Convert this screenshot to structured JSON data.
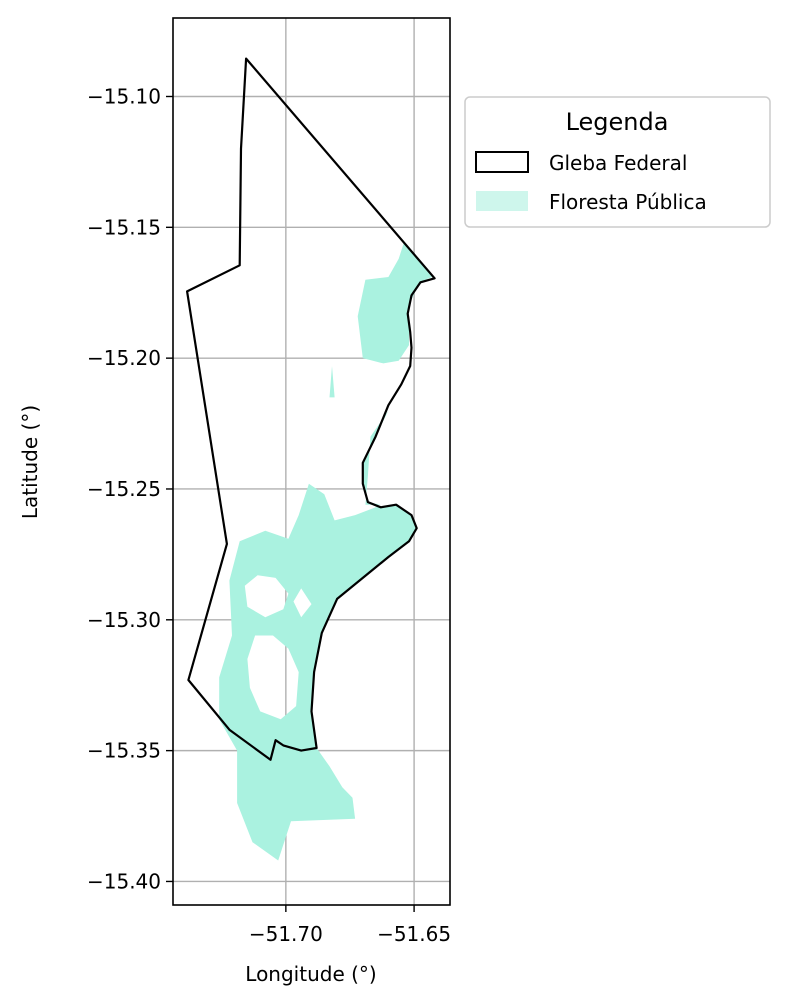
{
  "chart_data": {
    "type": "map",
    "xlabel": "Longitude (°)",
    "ylabel": "Latitude (°)",
    "xlim": [
      -51.744,
      -51.636
    ],
    "ylim": [
      -15.409,
      -15.07
    ],
    "x_ticks": [
      -51.7,
      -51.65
    ],
    "x_tick_labels": [
      "−51.70",
      "−51.65"
    ],
    "y_ticks": [
      -15.1,
      -15.15,
      -15.2,
      -15.25,
      -15.3,
      -15.35,
      -15.4
    ],
    "y_tick_labels": [
      "−15.10",
      "−15.15",
      "−15.20",
      "−15.25",
      "−15.30",
      "−15.35",
      "−15.40"
    ],
    "grid": true,
    "legend": {
      "title": "Legenda",
      "placement": "outside-right",
      "entries": [
        {
          "label": "Gleba Federal",
          "kind": "outline",
          "edge": "#000000",
          "fill": "#ffffff"
        },
        {
          "label": "Floresta Pública",
          "kind": "fill",
          "fill": "#aaf2e0"
        }
      ]
    },
    "series": [
      {
        "name": "Gleba Federal",
        "kind": "outline",
        "color": "#000000",
        "points": [
          [
            -51.7155,
            -15.0855
          ],
          [
            -51.642,
            -15.1695
          ],
          [
            -51.6475,
            -15.171
          ],
          [
            -51.651,
            -15.176
          ],
          [
            -51.6525,
            -15.183
          ],
          [
            -51.6515,
            -15.19
          ],
          [
            -51.651,
            -15.196
          ],
          [
            -51.6515,
            -15.203
          ],
          [
            -51.655,
            -15.21
          ],
          [
            -51.66,
            -15.218
          ],
          [
            -51.665,
            -15.23
          ],
          [
            -51.67,
            -15.24
          ],
          [
            -51.67,
            -15.248
          ],
          [
            -51.668,
            -15.255
          ],
          [
            -51.663,
            -15.257
          ],
          [
            -51.657,
            -15.256
          ],
          [
            -51.651,
            -15.26
          ],
          [
            -51.649,
            -15.265
          ],
          [
            -51.652,
            -15.27
          ],
          [
            -51.66,
            -15.276
          ],
          [
            -51.67,
            -15.284
          ],
          [
            -51.68,
            -15.292
          ],
          [
            -51.686,
            -15.305
          ],
          [
            -51.689,
            -15.32
          ],
          [
            -51.69,
            -15.335
          ],
          [
            -51.688,
            -15.349
          ],
          [
            -51.694,
            -15.35
          ],
          [
            -51.701,
            -15.348
          ],
          [
            -51.704,
            -15.346
          ],
          [
            -51.706,
            -15.3535
          ],
          [
            -51.722,
            -15.342
          ],
          [
            -51.738,
            -15.323
          ],
          [
            -51.723,
            -15.271
          ],
          [
            -51.7385,
            -15.1745
          ],
          [
            -51.718,
            -15.1645
          ],
          [
            -51.7175,
            -15.12
          ]
        ]
      },
      {
        "name": "Floresta Pública",
        "kind": "fill",
        "color": "#aaf2e0",
        "polygons": [
          [
            [
              -51.654,
              -15.156
            ],
            [
              -51.643,
              -15.169
            ],
            [
              -51.648,
              -15.171
            ],
            [
              -51.652,
              -15.18
            ],
            [
              -51.652,
              -15.195
            ],
            [
              -51.656,
              -15.201
            ],
            [
              -51.662,
              -15.202
            ],
            [
              -51.67,
              -15.2
            ],
            [
              -51.672,
              -15.184
            ],
            [
              -51.669,
              -15.17
            ],
            [
              -51.66,
              -15.169
            ],
            [
              -51.656,
              -15.162
            ]
          ],
          [
            [
              -51.682,
              -15.203
            ],
            [
              -51.681,
              -15.215
            ],
            [
              -51.683,
              -15.215
            ]
          ],
          [
            [
              -51.66,
              -15.22
            ],
            [
              -51.665,
              -15.23
            ],
            [
              -51.67,
              -15.24
            ],
            [
              -51.67,
              -15.248
            ],
            [
              -51.668,
              -15.255
            ],
            [
              -51.663,
              -15.256
            ],
            [
              -51.669,
              -15.256
            ],
            [
              -51.668,
              -15.245
            ],
            [
              -51.667,
              -15.23
            ]
          ],
          [
            [
              -51.691,
              -15.248
            ],
            [
              -51.685,
              -15.252
            ],
            [
              -51.681,
              -15.262
            ],
            [
              -51.673,
              -15.26
            ],
            [
              -51.665,
              -15.257
            ],
            [
              -51.657,
              -15.256
            ],
            [
              -51.651,
              -15.26
            ],
            [
              -51.649,
              -15.265
            ],
            [
              -51.652,
              -15.27
            ],
            [
              -51.66,
              -15.276
            ],
            [
              -51.67,
              -15.284
            ],
            [
              -51.68,
              -15.292
            ],
            [
              -51.686,
              -15.305
            ],
            [
              -51.689,
              -15.32
            ],
            [
              -51.69,
              -15.335
            ],
            [
              -51.688,
              -15.349
            ],
            [
              -51.683,
              -15.356
            ],
            [
              -51.678,
              -15.364
            ],
            [
              -51.674,
              -15.368
            ],
            [
              -51.673,
              -15.376
            ],
            [
              -51.698,
              -15.377
            ],
            [
              -51.703,
              -15.392
            ],
            [
              -51.713,
              -15.385
            ],
            [
              -51.719,
              -15.37
            ],
            [
              -51.719,
              -15.35
            ],
            [
              -51.726,
              -15.338
            ],
            [
              -51.726,
              -15.322
            ],
            [
              -51.721,
              -15.306
            ],
            [
              -51.722,
              -15.285
            ],
            [
              -51.718,
              -15.27
            ],
            [
              -51.708,
              -15.266
            ],
            [
              -51.699,
              -15.269
            ],
            [
              -51.695,
              -15.26
            ]
          ]
        ],
        "holes": [
          [
            [
              -51.716,
              -15.287
            ],
            [
              -51.711,
              -15.283
            ],
            [
              -51.704,
              -15.284
            ],
            [
              -51.699,
              -15.29
            ],
            [
              -51.701,
              -15.296
            ],
            [
              -51.708,
              -15.299
            ],
            [
              -51.715,
              -15.295
            ]
          ],
          [
            [
              -51.712,
              -15.306
            ],
            [
              -51.705,
              -15.306
            ],
            [
              -51.699,
              -15.311
            ],
            [
              -51.695,
              -15.32
            ],
            [
              -51.696,
              -15.333
            ],
            [
              -51.702,
              -15.338
            ],
            [
              -51.71,
              -15.335
            ],
            [
              -51.714,
              -15.326
            ],
            [
              -51.715,
              -15.315
            ]
          ],
          [
            [
              -51.694,
              -15.288
            ],
            [
              -51.69,
              -15.294
            ],
            [
              -51.694,
              -15.299
            ],
            [
              -51.697,
              -15.293
            ]
          ]
        ]
      }
    ]
  }
}
